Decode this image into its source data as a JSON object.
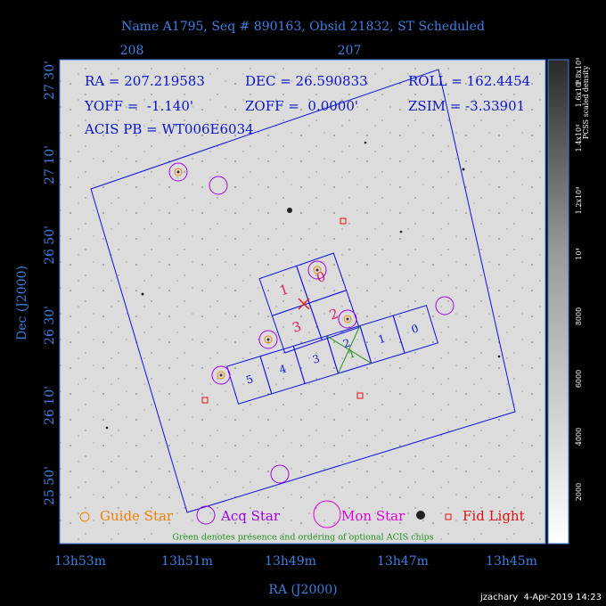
{
  "title": "Name A1795, Seq # 890163, Obsid 21832, ST Scheduled",
  "axes": {
    "top_ticks": [
      "208",
      "207"
    ],
    "left_ticks": [
      "27 30'",
      "27 10'",
      "26 50'",
      "26 30'",
      "26 10'",
      "25 50'"
    ],
    "bottom_ticks": [
      "13h53m",
      "13h51m",
      "13h49m",
      "13h47m",
      "13h45m"
    ],
    "x_label": "RA (J2000)",
    "y_label": "Dec (J2000)"
  },
  "info": {
    "ra": "RA = 207.219583",
    "dec": "DEC = 26.590833",
    "roll": "ROLL = 162.4454",
    "yoff": "YOFF =  -1.140'",
    "zoff": "ZOFF =  0.0000'",
    "zsim": "ZSIM = -3.33901",
    "acis_pb": "ACIS PB = WT006E6034"
  },
  "colorbar": {
    "label": "PCSS scaled density",
    "ticks": [
      "2000",
      "4000",
      "6000",
      "8000",
      "10⁴",
      "1.2x10⁴",
      "1.4x10⁴",
      "1.6x10⁴",
      "1.8x10⁴"
    ]
  },
  "chips": {
    "acis_i": [
      "1",
      "0",
      "3",
      "2"
    ],
    "acis_s": [
      "5",
      "4",
      "3",
      "2",
      "1",
      "0"
    ],
    "optional": "1"
  },
  "legend": [
    "Guide Star",
    "Acq Star",
    "Mon Star",
    "Fid Light"
  ],
  "note": "Green denotes presence and ordering of optional ACIS chips",
  "footer": "jzachary  4-Apr-2019 14:23"
}
